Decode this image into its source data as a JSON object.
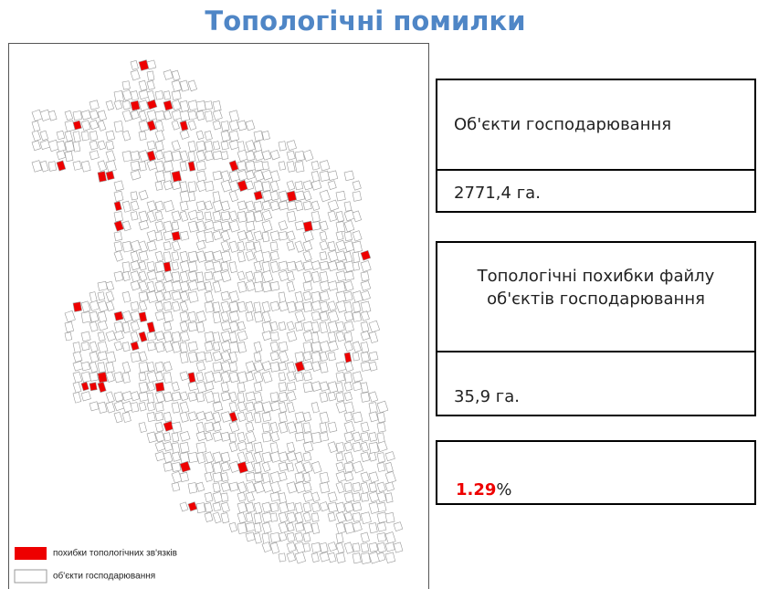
{
  "header": {
    "title": "Топологічні помилки"
  },
  "legend": {
    "items": [
      "похибки топологічних зв'язків",
      "об'єкти господарювання"
    ]
  },
  "panels": [
    {
      "label": "Об'єкти господарювання",
      "value": "2771,4  га."
    },
    {
      "label": "Топологічні похибки файлу об'єктів господарювання",
      "value": "35,9 га."
    }
  ],
  "ratio": {
    "value": "1.29",
    "suffix": "%"
  }
}
